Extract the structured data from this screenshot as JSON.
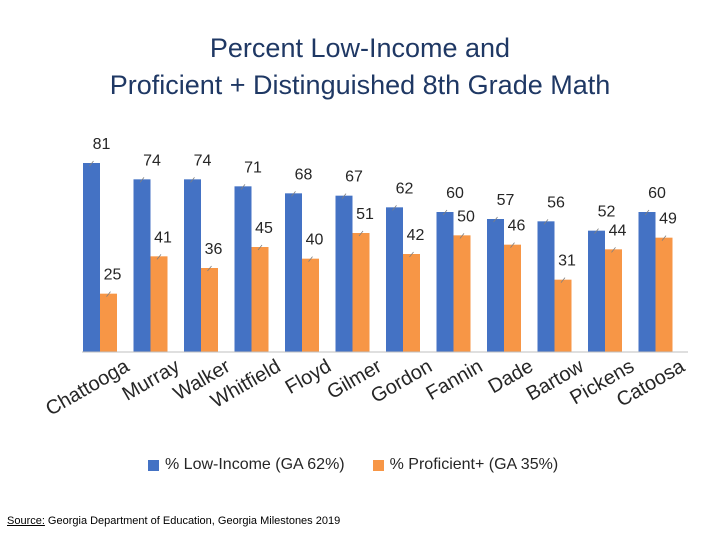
{
  "chart_data": {
    "type": "bar",
    "title_line1": "Percent Low-Income and",
    "title_line2": "Proficient + Distinguished 8th Grade Math",
    "categories": [
      "Chattooga",
      "Murray",
      "Walker",
      "Whitfield",
      "Floyd",
      "Gilmer",
      "Gordon",
      "Fannin",
      "Dade",
      "Bartow",
      "Pickens",
      "Catoosa"
    ],
    "series": [
      {
        "name": "% Low-Income (GA 62%)",
        "color": "#4472c4",
        "values": [
          81,
          74,
          74,
          71,
          68,
          67,
          62,
          60,
          57,
          56,
          52,
          60
        ]
      },
      {
        "name": "% Proficient+ (GA 35%)",
        "color": "#f79646",
        "values": [
          25,
          41,
          36,
          45,
          40,
          51,
          42,
          50,
          46,
          31,
          44,
          49
        ]
      }
    ],
    "ylim": [
      0,
      81
    ],
    "grid": false,
    "legend": "bottom"
  },
  "source": {
    "label": "Source:",
    "text": "Georgia Department of Education, Georgia Milestones 2019"
  }
}
